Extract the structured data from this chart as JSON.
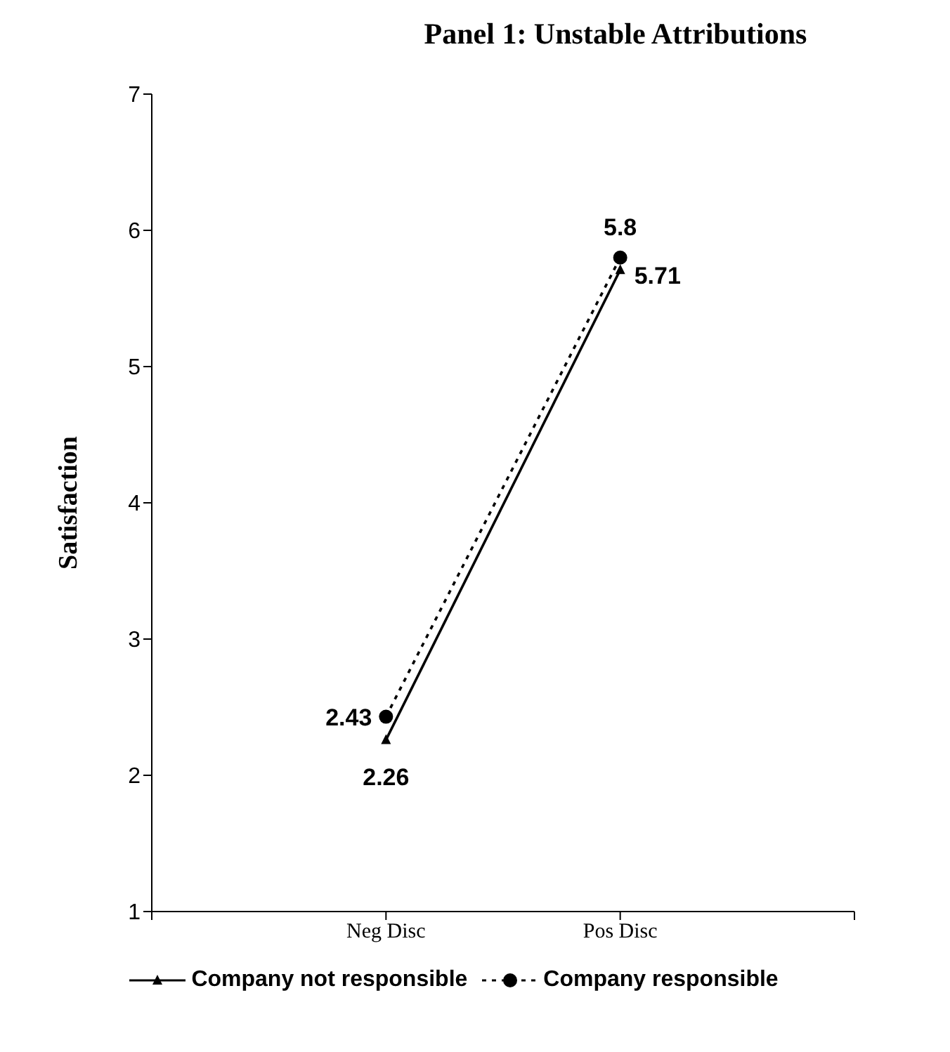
{
  "chart_data": {
    "type": "line",
    "title": "Panel 1: Unstable Attributions",
    "ylabel": "Satisfaction",
    "categories": [
      null,
      "Neg Disc",
      "Pos Disc",
      null
    ],
    "series": [
      {
        "name": "Company not responsible",
        "color": "#000000",
        "values": [
          null,
          2.26,
          5.71,
          null
        ],
        "marker": "triangle",
        "line_style": "solid"
      },
      {
        "name": "Company responsible",
        "color": "#000000",
        "values": [
          null,
          2.43,
          5.8,
          null
        ],
        "marker": "circle",
        "line_style": "dotted"
      }
    ],
    "ylim": [
      1,
      7
    ],
    "yticks": [
      1,
      2,
      3,
      4,
      5,
      6,
      7
    ],
    "grid": false,
    "legend": "bottom",
    "data_labels": true
  }
}
